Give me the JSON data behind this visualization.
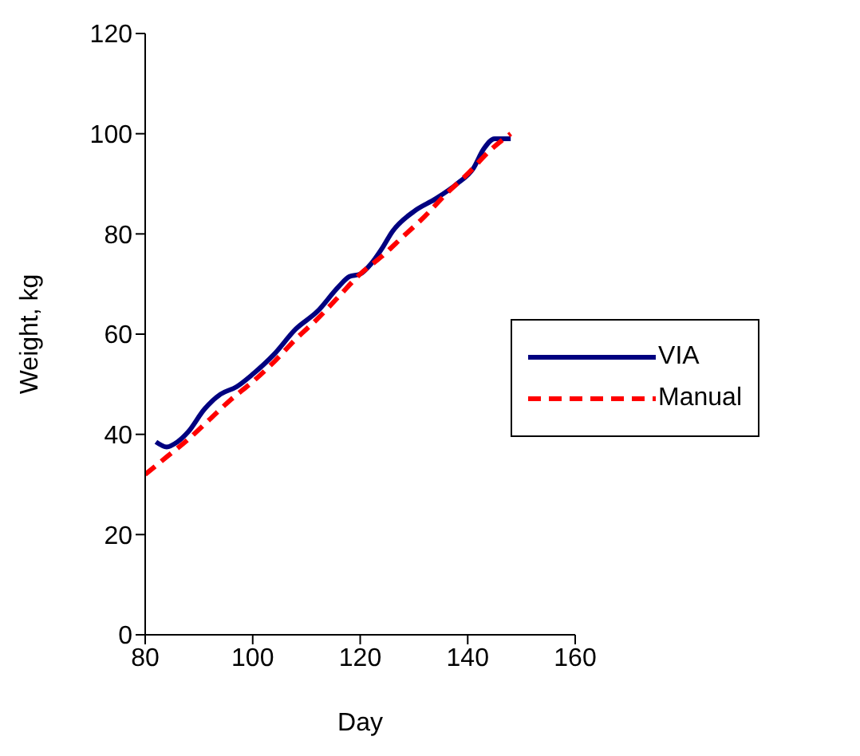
{
  "chart_data": {
    "type": "line",
    "xlabel": "Day",
    "ylabel": "Weight, kg",
    "xlim": [
      80,
      160
    ],
    "xticks": [
      80,
      100,
      120,
      140,
      160
    ],
    "ylim": [
      0,
      120
    ],
    "yticks": [
      0,
      20,
      40,
      60,
      80,
      100,
      120
    ],
    "grid": false,
    "legend": "right",
    "marker": "none",
    "series": [
      {
        "name": "VIA",
        "color": "#000080",
        "line_style": "solid",
        "x": [
          82,
          84,
          86,
          88,
          91,
          94,
          97,
          100,
          104,
          108,
          112,
          116,
          118,
          120,
          122,
          124,
          126,
          130,
          134,
          138,
          141,
          143,
          145,
          148
        ],
        "values": [
          38.5,
          37.5,
          38.5,
          40.5,
          45,
          48,
          49.5,
          52,
          56,
          61,
          64.5,
          69.5,
          71.5,
          72,
          74,
          77,
          80.5,
          84.5,
          87,
          90,
          93,
          97,
          99,
          99
        ]
      },
      {
        "name": "Manual",
        "color": "#ff0000",
        "line_style": "dashed",
        "x": [
          80,
          84,
          88,
          92,
          96,
          100,
          104,
          108,
          112,
          116,
          120,
          124,
          128,
          132,
          136,
          140,
          144,
          148
        ],
        "values": [
          32,
          35.5,
          39,
          43,
          47,
          50.5,
          54.5,
          59,
          63,
          67.5,
          72,
          75.5,
          79.5,
          83.5,
          88,
          92,
          96.5,
          100
        ]
      }
    ]
  }
}
